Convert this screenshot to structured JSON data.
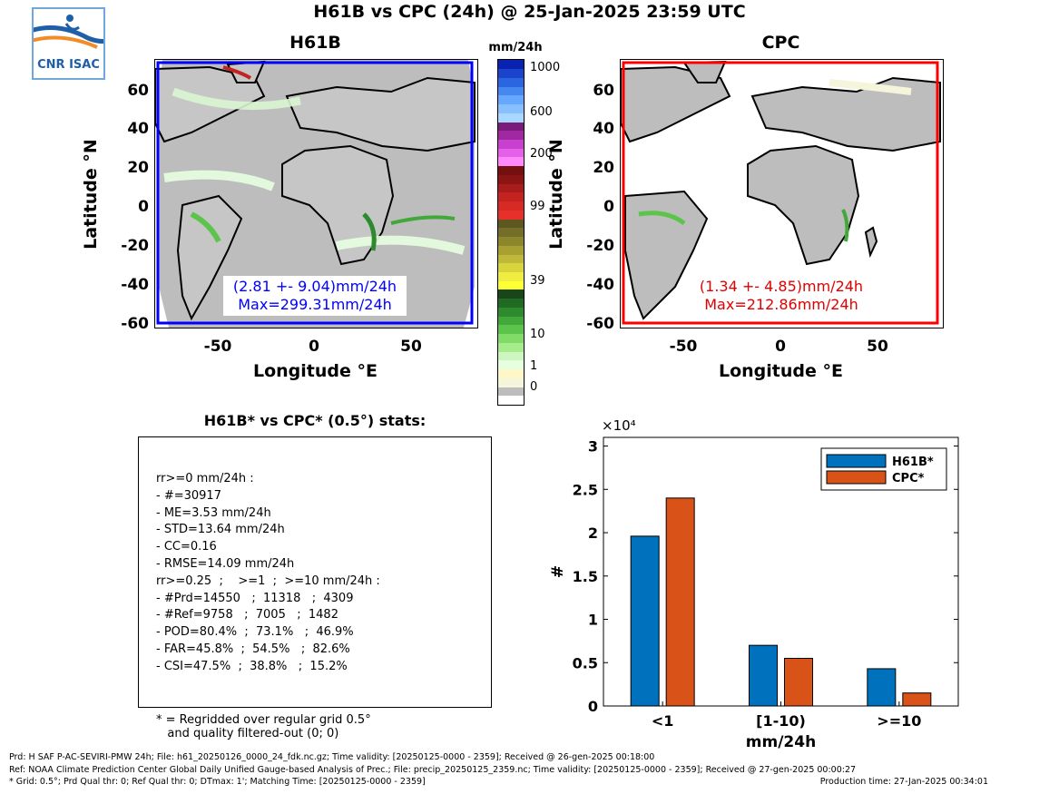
{
  "title": "H61B vs CPC (24h) @ 25-Jan-2025 23:59 UTC",
  "logo": {
    "text": "CNR ISAC",
    "colors": [
      "#1f5fa8",
      "#f28c28"
    ]
  },
  "maps": [
    {
      "id": "h61b",
      "title": "H61B",
      "box_color": "#0000ff",
      "overlay_line1": "(2.81 +- 9.04)mm/24h",
      "overlay_line2": "Max=299.31mm/24h",
      "overlay_color": "#0000ff",
      "xticks": [
        "-50",
        "0",
        "50"
      ],
      "yticks": [
        "60",
        "40",
        "20",
        "0",
        "-20",
        "-40",
        "-60"
      ],
      "xlabel": "Longitude °E",
      "ylabel": "Latitude °N"
    },
    {
      "id": "cpc",
      "title": "CPC",
      "box_color": "#ff0000",
      "overlay_line1": "(1.34 +- 4.85)mm/24h",
      "overlay_line2": "Max=212.86mm/24h",
      "overlay_color": "#e00000",
      "xticks": [
        "-50",
        "0",
        "50"
      ],
      "yticks": [
        "60",
        "40",
        "20",
        "0",
        "-20",
        "-40",
        "-60"
      ],
      "xlabel": "Longitude °E",
      "ylabel": "Latitude °N"
    }
  ],
  "colorbar": {
    "unit": "mm/24h",
    "labels": [
      "1000",
      "600",
      "200",
      "99",
      "39",
      "10",
      "1",
      "0"
    ],
    "colors": [
      "#ffffff",
      "#bdbdbd",
      "#f5f5dc",
      "#fff7c8",
      "#e6ffe0",
      "#ccf5c0",
      "#a6ec8c",
      "#80dc66",
      "#5cc44a",
      "#43a83a",
      "#2e8a2e",
      "#1f6b22",
      "#18451a",
      "#ffff33",
      "#f0ec40",
      "#d8d43c",
      "#bfb838",
      "#a8a030",
      "#8c862c",
      "#746e28",
      "#5c5820",
      "#e8302a",
      "#d82a24",
      "#c42420",
      "#a81c1c",
      "#8c1414",
      "#741010",
      "#ff88ff",
      "#e460e8",
      "#c840d0",
      "#a028a0",
      "#7a1a7a",
      "#a8d8ff",
      "#88c0ff",
      "#66a8ff",
      "#4488f0",
      "#2a66e0",
      "#1a44cc",
      "#0a22b0"
    ]
  },
  "stats": {
    "title": "H61B* vs CPC* (0.5°) stats:",
    "lines": [
      "rr>=0 mm/24h :",
      "- #=30917",
      "- ME=3.53 mm/24h",
      "- STD=13.64 mm/24h",
      "- CC=0.16",
      "- RMSE=14.09 mm/24h",
      "rr>=0.25  ;    >=1  ;  >=10 mm/24h :",
      "- #Prd=14550   ;  11318   ;  4309",
      "- #Ref=9758   ;  7005   ;  1482",
      "- POD=80.4%  ;  73.1%   ;  46.9%",
      "- FAR=45.8%  ;  54.5%   ;  82.6%",
      "- CSI=47.5%  ;  38.8%   ;  15.2%"
    ],
    "note_line1": "* = Regridded over regular grid 0.5°",
    "note_line2": "   and quality filtered-out (0; 0)"
  },
  "chart_data": {
    "type": "bar",
    "categories": [
      "<1",
      "[1-10)",
      ">=10"
    ],
    "series": [
      {
        "name": "H61B*",
        "values": [
          19600,
          7000,
          4300
        ],
        "color": "#0072bd"
      },
      {
        "name": "CPC*",
        "values": [
          24000,
          5500,
          1500
        ],
        "color": "#d95319"
      }
    ],
    "xlabel": "mm/24h",
    "ylabel": "#",
    "exponent_label": "×10⁴",
    "ytick_labels": [
      "0",
      "0.5",
      "1",
      "1.5",
      "2",
      "2.5",
      "3"
    ],
    "ylim": [
      0,
      31000
    ],
    "legend_position": "top-right",
    "grid": false
  },
  "footer": {
    "line1": "Prd: H SAF P-AC-SEVIRI-PMW 24h; File: h61_20250126_0000_24_fdk.nc.gz; Time validity: [20250125-0000 - 2359]; Received @ 26-gen-2025 00:18:00",
    "line2": "Ref: NOAA Climate Prediction Center Global Daily Unified Gauge-based Analysis of Prec.; File: precip_20250125_2359.nc; Time validity: [20250125-0000 - 2359]; Received @ 27-gen-2025 00:00:27",
    "line3": "* Grid: 0.5°; Prd Qual thr: 0; Ref Qual thr: 0; DTmax: 1'; Matching Time: [20250125-0000 - 2359]",
    "production": "Production time: 27-Jan-2025 00:34:01"
  }
}
